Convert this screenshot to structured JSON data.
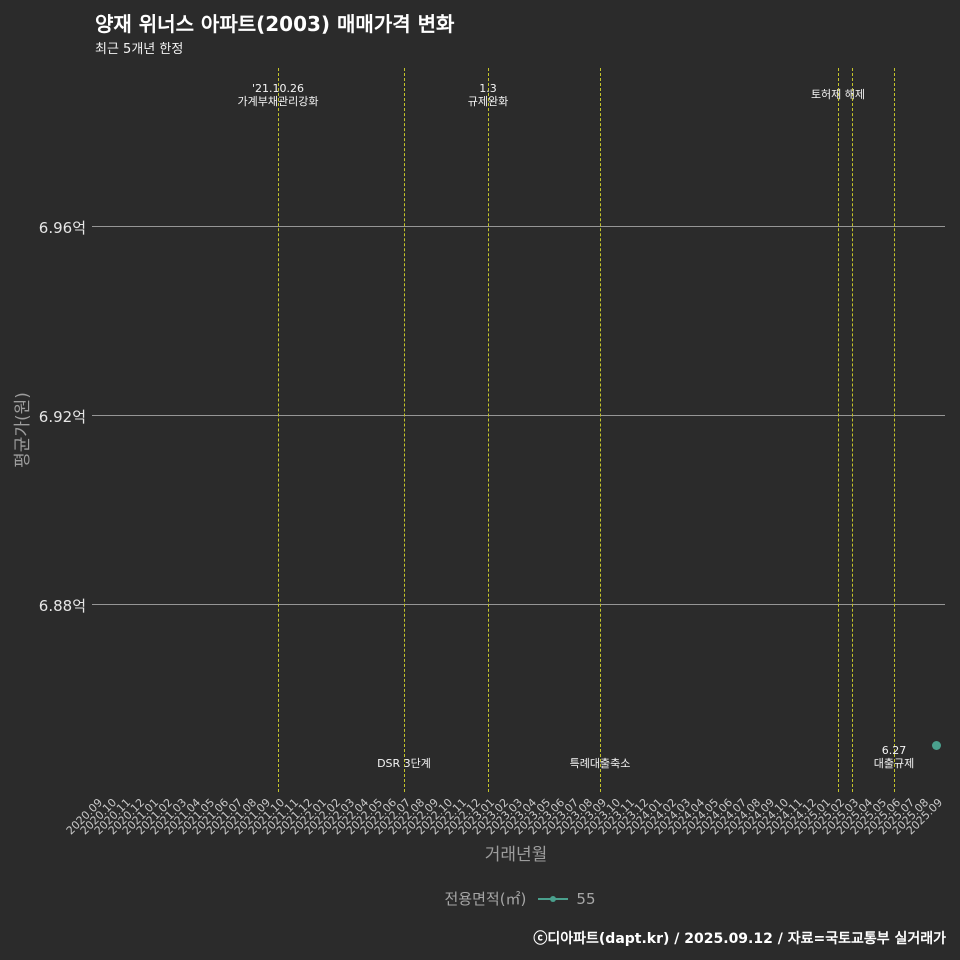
{
  "header": {
    "title": "양재 위너스 아파트(2003) 매매가격 변화",
    "subtitle": "최근 5개년 한정"
  },
  "legend": {
    "label": "전용면적(㎡)",
    "items": [
      {
        "name": "55",
        "color": "#4aa08d"
      }
    ]
  },
  "footer": {
    "text": "ⓒ디아파트(dapt.kr) / 2025.09.12 / 자료=국토교통부 실거래가"
  },
  "colors": {
    "background": "#2b2b2b",
    "event_line": "#c3c32a",
    "series": "#4aa08d",
    "gridline": "#969696"
  },
  "chart_data": {
    "type": "scatter",
    "title": "양재 위너스 아파트(2003) 매매가격 변화",
    "subtitle": "최근 5개년 한정",
    "xlabel": "거래년월",
    "ylabel": "평균가(원)",
    "grid": "horizontal",
    "legend_position": "bottom-center",
    "ylim": [
      6.8402,
      6.9934
    ],
    "y_ticks": [
      {
        "label": "6.96억",
        "value": 6.96
      },
      {
        "label": "6.92억",
        "value": 6.92
      },
      {
        "label": "6.88억",
        "value": 6.88
      }
    ],
    "x_categories": [
      "2020.09",
      "2020.10",
      "2020.11",
      "2020.12",
      "2021.01",
      "2021.02",
      "2021.03",
      "2021.04",
      "2021.05",
      "2021.06",
      "2021.07",
      "2021.08",
      "2021.09",
      "2021.10",
      "2021.11",
      "2021.12",
      "2022.01",
      "2022.02",
      "2022.03",
      "2022.04",
      "2022.05",
      "2022.06",
      "2022.07",
      "2022.08",
      "2022.09",
      "2022.10",
      "2022.11",
      "2022.12",
      "2023.01",
      "2023.02",
      "2023.03",
      "2023.04",
      "2023.05",
      "2023.06",
      "2023.07",
      "2023.08",
      "2023.09",
      "2023.10",
      "2023.11",
      "2023.12",
      "2024.01",
      "2024.02",
      "2024.03",
      "2024.04",
      "2024.05",
      "2024.06",
      "2024.07",
      "2024.08",
      "2024.09",
      "2024.10",
      "2024.11",
      "2024.12",
      "2025.01",
      "2025.02",
      "2025.03",
      "2025.04",
      "2025.05",
      "2025.06",
      "2025.07",
      "2025.08",
      "2025.09"
    ],
    "event_lines": [
      "2021.10",
      "2022.07",
      "2023.01",
      "2023.09",
      "2025.02",
      "2025.03",
      "2025.06"
    ],
    "annotations": [
      {
        "x": "2021.10",
        "position": "top",
        "lines": [
          "'21.10.26",
          "가계부채관리강화"
        ]
      },
      {
        "x": "2023.01",
        "position": "top",
        "lines": [
          "1.3",
          "규제완화"
        ]
      },
      {
        "x": "2025.02",
        "position": "top",
        "lines": [
          "토허제 해제"
        ]
      },
      {
        "x": "2022.07",
        "position": "bottom",
        "lines": [
          "DSR 3단계"
        ]
      },
      {
        "x": "2023.09",
        "position": "bottom",
        "lines": [
          "특례대출축소"
        ]
      },
      {
        "x": "2025.06",
        "position": "bottom",
        "lines": [
          "6.27",
          "대출규제"
        ]
      }
    ],
    "series": [
      {
        "name": "55",
        "color": "#4aa08d",
        "points": [
          {
            "x": "2025.09",
            "y": 6.85
          }
        ]
      }
    ]
  }
}
